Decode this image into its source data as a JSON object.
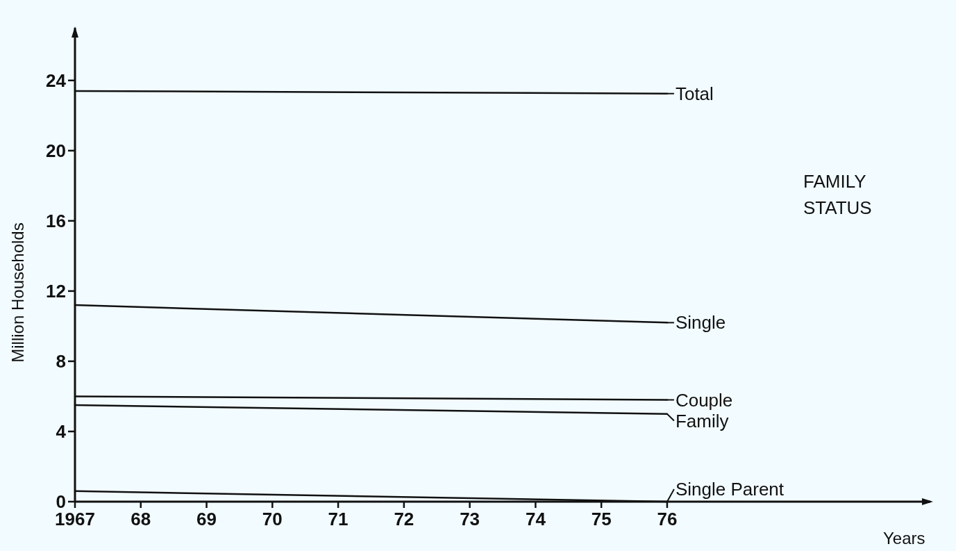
{
  "chart_data": {
    "type": "line",
    "xlabel": "Years",
    "ylabel": "Million Households",
    "annotations": [
      "FAMILY STATUS"
    ],
    "x": [
      1967,
      1976
    ],
    "series": [
      {
        "name": "Total",
        "color": "#111111",
        "values": [
          23.4,
          23.25
        ]
      },
      {
        "name": "Single",
        "color": "#111111",
        "values": [
          11.2,
          10.2
        ]
      },
      {
        "name": "Couple",
        "color": "#111111",
        "values": [
          6.0,
          5.8
        ]
      },
      {
        "name": "Family",
        "color": "#111111",
        "values": [
          5.5,
          5.0
        ]
      },
      {
        "name": "Single Parent",
        "color": "#111111",
        "values": [
          0.6,
          0.0
        ]
      }
    ],
    "xlim": [
      1967,
      1980
    ],
    "ylim": [
      0,
      27
    ],
    "xticks": [
      {
        "value": 1967,
        "label": "1967"
      },
      {
        "value": 1968,
        "label": "68"
      },
      {
        "value": 1969,
        "label": "69"
      },
      {
        "value": 1970,
        "label": "70"
      },
      {
        "value": 1971,
        "label": "71"
      },
      {
        "value": 1972,
        "label": "72"
      },
      {
        "value": 1973,
        "label": "73"
      },
      {
        "value": 1974,
        "label": "74"
      },
      {
        "value": 1975,
        "label": "75"
      },
      {
        "value": 1976,
        "label": "76"
      }
    ],
    "yticks": [
      0,
      4,
      8,
      12,
      16,
      20,
      24
    ],
    "grid": false,
    "legend": "right",
    "marker": "none",
    "line_style": "solid"
  }
}
